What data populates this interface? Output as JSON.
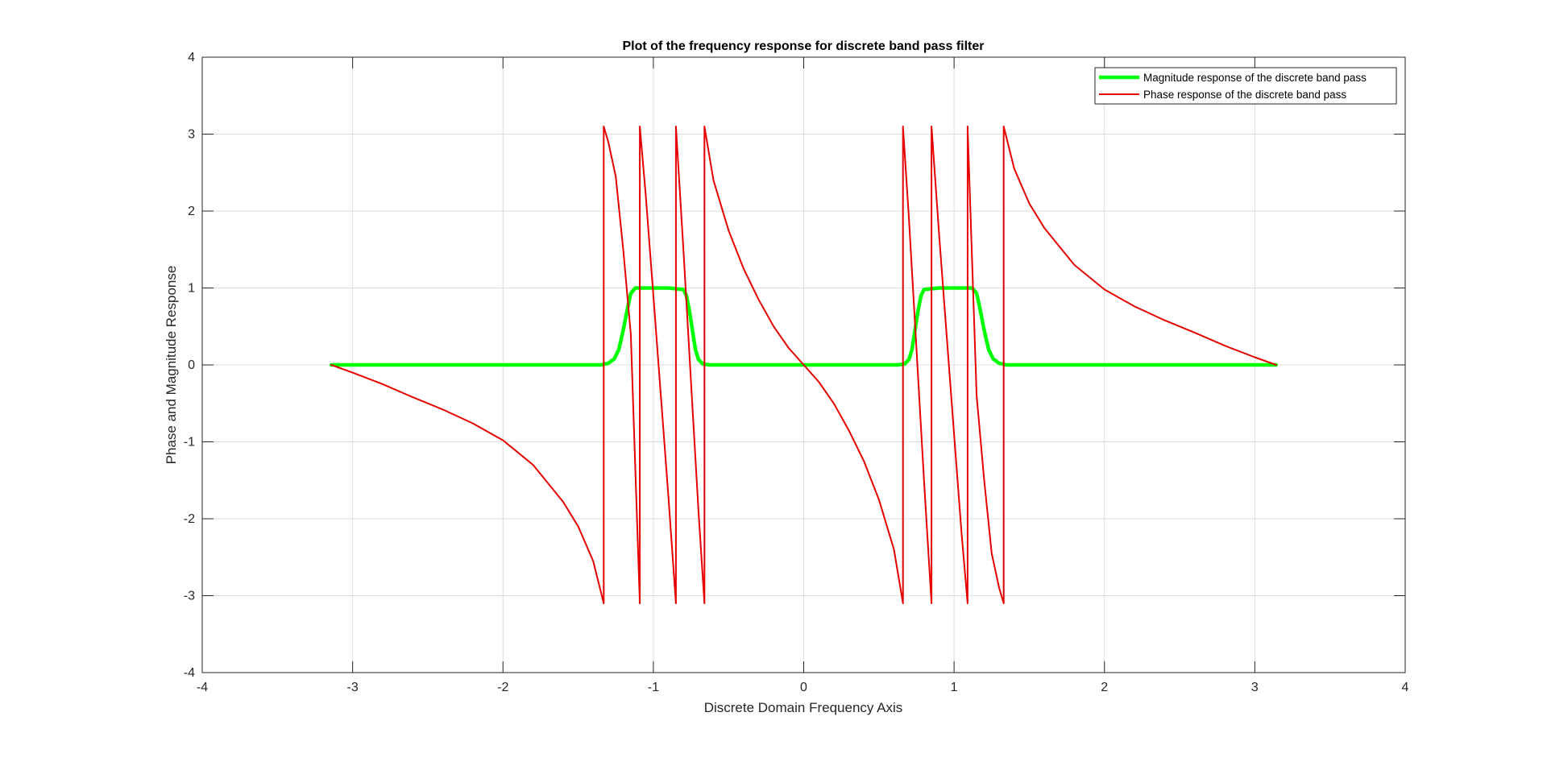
{
  "chart_data": {
    "type": "line",
    "title": "Plot of the frequency response for discrete band pass filter",
    "xlabel": "Discrete Domain Frequency Axis",
    "ylabel": "Phase and Magnitude Response",
    "xlim": [
      -4,
      4
    ],
    "ylim": [
      -4,
      4
    ],
    "xticks": [
      -4,
      -3,
      -2,
      -1,
      0,
      1,
      2,
      3,
      4
    ],
    "yticks": [
      -4,
      -3,
      -2,
      -1,
      0,
      1,
      2,
      3,
      4
    ],
    "xticklabels": [
      "-4",
      "-3",
      "-2",
      "-1",
      "0",
      "1",
      "2",
      "3",
      "4"
    ],
    "yticklabels": [
      "-4",
      "-3",
      "-2",
      "-1",
      "0",
      "1",
      "2",
      "3",
      "4"
    ],
    "grid": true,
    "legend_position": "top-right",
    "series": [
      {
        "name": "Magnitude response of the discrete band pass",
        "color": "#00ff00",
        "line_width": "thick",
        "x": [
          -3.1416,
          -1.35,
          -1.3,
          -1.26,
          -1.23,
          -1.2,
          -1.17,
          -1.15,
          -1.12,
          -1.05,
          -0.9,
          -0.8,
          -0.78,
          -0.76,
          -0.74,
          -0.72,
          -0.7,
          -0.67,
          -0.62,
          0.0,
          0.62,
          0.67,
          0.7,
          0.72,
          0.74,
          0.76,
          0.78,
          0.8,
          0.9,
          1.05,
          1.12,
          1.15,
          1.17,
          1.2,
          1.23,
          1.26,
          1.3,
          1.35,
          3.1416
        ],
        "y": [
          0,
          0,
          0.02,
          0.08,
          0.2,
          0.45,
          0.75,
          0.93,
          1,
          1,
          1,
          0.98,
          0.9,
          0.7,
          0.45,
          0.2,
          0.07,
          0.01,
          0,
          0,
          0,
          0.01,
          0.07,
          0.2,
          0.45,
          0.7,
          0.9,
          0.98,
          1,
          1,
          1,
          0.93,
          0.75,
          0.45,
          0.2,
          0.08,
          0.02,
          0,
          0
        ]
      },
      {
        "name": "Phase response of the discrete band pass",
        "color": "#e60000",
        "line_width": "normal",
        "x": [
          -3.1416,
          -3.0,
          -2.8,
          -2.6,
          -2.4,
          -2.2,
          -2.0,
          -1.8,
          -1.6,
          -1.5,
          -1.4,
          -1.33,
          -1.33,
          -1.3,
          -1.25,
          -1.2,
          -1.15,
          -1.09,
          -1.09,
          -1.05,
          -1.0,
          -0.95,
          -0.9,
          -0.85,
          -0.85,
          -0.8,
          -0.75,
          -0.7,
          -0.66,
          -0.66,
          -0.6,
          -0.5,
          -0.4,
          -0.3,
          -0.2,
          -0.1,
          0.0,
          0.1,
          0.2,
          0.3,
          0.4,
          0.5,
          0.6,
          0.66,
          0.66,
          0.7,
          0.75,
          0.8,
          0.85,
          0.85,
          0.9,
          0.95,
          1.0,
          1.05,
          1.09,
          1.09,
          1.15,
          1.2,
          1.25,
          1.3,
          1.33,
          1.33,
          1.4,
          1.5,
          1.6,
          1.8,
          2.0,
          2.2,
          2.4,
          2.6,
          2.8,
          3.0,
          3.1416
        ],
        "y": [
          0,
          -0.1,
          -0.25,
          -0.42,
          -0.58,
          -0.76,
          -0.98,
          -1.3,
          -1.78,
          -2.1,
          -2.55,
          -3.1,
          3.1,
          2.9,
          2.45,
          1.5,
          0.4,
          -3.1,
          3.1,
          2.2,
          0.9,
          -0.4,
          -1.7,
          -3.1,
          3.1,
          1.5,
          -0.2,
          -1.9,
          -3.1,
          3.1,
          2.4,
          1.75,
          1.25,
          0.85,
          0.5,
          0.22,
          0,
          -0.22,
          -0.5,
          -0.85,
          -1.25,
          -1.75,
          -2.4,
          -3.1,
          3.1,
          1.9,
          0.2,
          -1.5,
          -3.1,
          3.1,
          1.7,
          0.4,
          -0.9,
          -2.2,
          -3.1,
          3.1,
          -0.4,
          -1.5,
          -2.45,
          -2.9,
          -3.1,
          3.1,
          2.55,
          2.1,
          1.78,
          1.3,
          0.98,
          0.76,
          0.58,
          0.42,
          0.25,
          0.1,
          0
        ]
      }
    ]
  }
}
